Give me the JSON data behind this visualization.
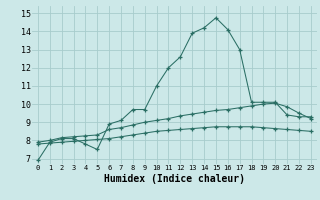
{
  "xlabel": "Humidex (Indice chaleur)",
  "ylabel": "",
  "background_color": "#cce8e8",
  "line_color": "#2a6e64",
  "grid_color": "#a8cccc",
  "x_ticks": [
    0,
    1,
    2,
    3,
    4,
    5,
    6,
    7,
    8,
    9,
    10,
    11,
    12,
    13,
    14,
    15,
    16,
    17,
    18,
    19,
    20,
    21,
    22,
    23
  ],
  "y_ticks": [
    7,
    8,
    9,
    10,
    11,
    12,
    13,
    14,
    15
  ],
  "ylim": [
    6.7,
    15.4
  ],
  "xlim": [
    -0.5,
    23.5
  ],
  "series1_y": [
    6.9,
    7.9,
    8.1,
    8.1,
    7.8,
    7.5,
    8.9,
    9.1,
    9.7,
    9.7,
    11.0,
    12.0,
    12.6,
    13.9,
    14.2,
    14.75,
    14.1,
    13.0,
    10.1,
    10.1,
    10.1,
    9.4,
    9.3,
    9.3
  ],
  "series2_y": [
    7.9,
    8.0,
    8.15,
    8.2,
    8.25,
    8.3,
    8.6,
    8.7,
    8.85,
    9.0,
    9.1,
    9.2,
    9.35,
    9.45,
    9.55,
    9.65,
    9.7,
    9.8,
    9.9,
    10.0,
    10.05,
    9.85,
    9.5,
    9.2
  ],
  "series3_y": [
    7.8,
    7.85,
    7.9,
    7.95,
    8.0,
    8.05,
    8.1,
    8.2,
    8.3,
    8.4,
    8.5,
    8.55,
    8.6,
    8.65,
    8.7,
    8.75,
    8.75,
    8.75,
    8.75,
    8.7,
    8.65,
    8.6,
    8.55,
    8.5
  ]
}
